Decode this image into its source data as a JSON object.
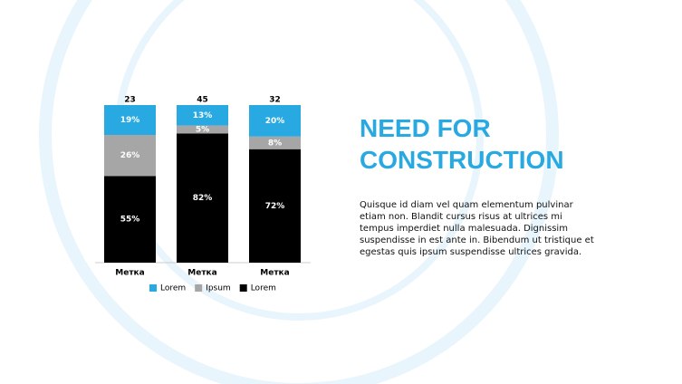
{
  "chart_data": {
    "type": "stacked-bar-100",
    "categories": [
      "Метка",
      "Метка",
      "Метка"
    ],
    "totals": [
      23,
      45,
      32
    ],
    "series": [
      {
        "name": "Lorem",
        "color": "#29a9e1",
        "values": [
          19,
          13,
          20
        ],
        "value_labels": [
          "19%",
          "13%",
          "20%"
        ]
      },
      {
        "name": "Ipsum",
        "color": "#a6a6a6",
        "values": [
          26,
          5,
          8
        ],
        "value_labels": [
          "26%",
          "5%",
          "8%"
        ]
      },
      {
        "name": "Lorem",
        "color": "#000000",
        "values": [
          55,
          82,
          72
        ],
        "value_labels": [
          "55%",
          "82%",
          "72%"
        ]
      }
    ],
    "ylim": [
      0,
      100
    ]
  },
  "slide": {
    "title": "NEED FOR CONSTRUCTION",
    "body": "Quisque id diam vel quam elementum pulvinar etiam non. Blandit cursus risus at ultrices mi tempus imperdiet nulla malesuada. Dignissim suspendisse in est ante in. Bibendum ut tristique et egestas quis ipsum suspendisse ultrices gravida."
  }
}
